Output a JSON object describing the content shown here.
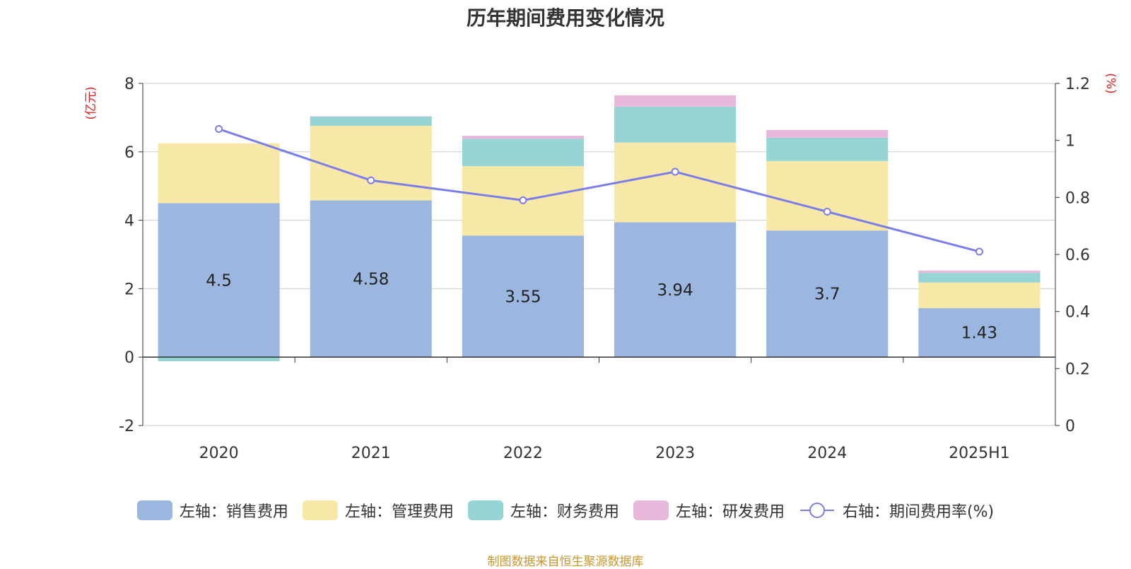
{
  "chart_data": {
    "type": "bar",
    "stacked": true,
    "title": "历年期间费用变化情况",
    "categories": [
      "2020",
      "2021",
      "2022",
      "2023",
      "2024",
      "2025H1"
    ],
    "left_axis": {
      "unit_label": "(亿元)",
      "ylim": [
        -2,
        8
      ],
      "ticks": [
        -2,
        0,
        2,
        4,
        6,
        8
      ]
    },
    "right_axis": {
      "unit_label": "(%)",
      "ylim": [
        0,
        1.2
      ],
      "ticks": [
        "0",
        "0.2",
        "0.4",
        "0.6",
        "0.8",
        "1",
        "1.2"
      ]
    },
    "series": [
      {
        "name": "左轴：销售费用",
        "axis": "left",
        "kind": "bar",
        "color": "#9bb7e0",
        "values": [
          4.5,
          4.58,
          3.55,
          3.94,
          3.7,
          1.43
        ],
        "labels": [
          "4.5",
          "4.58",
          "3.55",
          "3.94",
          "3.7",
          "1.43"
        ]
      },
      {
        "name": "左轴：管理费用",
        "axis": "left",
        "kind": "bar",
        "color": "#f7e8a8",
        "values": [
          1.75,
          2.18,
          2.03,
          2.33,
          2.03,
          0.75
        ]
      },
      {
        "name": "左轴：财务费用",
        "axis": "left",
        "kind": "bar",
        "color": "#97d4d4",
        "values": [
          -0.12,
          0.27,
          0.8,
          1.05,
          0.68,
          0.28
        ]
      },
      {
        "name": "左轴：研发费用",
        "axis": "left",
        "kind": "bar",
        "color": "#e8b8da",
        "values": [
          0.0,
          0.01,
          0.09,
          0.33,
          0.23,
          0.07
        ]
      },
      {
        "name": "右轴：期间费用率(%)",
        "axis": "right",
        "kind": "line",
        "color": "#7b7ee8",
        "values": [
          1.04,
          0.86,
          0.79,
          0.89,
          0.75,
          0.61
        ]
      }
    ],
    "grid": true,
    "legend_position": "bottom"
  },
  "footer": {
    "source": "制图数据来自恒生聚源数据库"
  },
  "colors": {
    "axis_unit": "#e02020",
    "text": "#333333",
    "grid": "#cccccc",
    "source": "#c8962d"
  }
}
